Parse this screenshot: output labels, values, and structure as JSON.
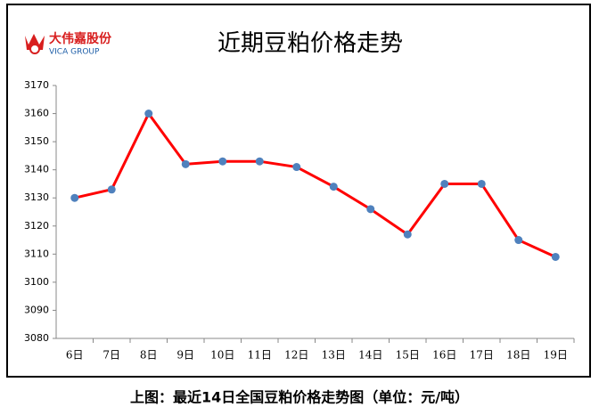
{
  "logo": {
    "name": "大伟嘉股份",
    "subtitle": "VICA GROUP"
  },
  "chart_data": {
    "type": "line",
    "title": "近期豆粕价格走势",
    "categories": [
      "6日",
      "7日",
      "8日",
      "9日",
      "10日",
      "11日",
      "12日",
      "13日",
      "14日",
      "15日",
      "16日",
      "17日",
      "18日",
      "19日"
    ],
    "series": [
      {
        "name": "豆粕价格",
        "color": "#ff0000",
        "marker_color": "#4f81bd",
        "values": [
          3130,
          3133,
          3160,
          3142,
          3143,
          3143,
          3141,
          3134,
          3126,
          3117,
          3135,
          3135,
          3115,
          3109
        ]
      }
    ],
    "ylim": [
      3080,
      3170
    ],
    "yticks": [
      3080,
      3090,
      3100,
      3110,
      3120,
      3130,
      3140,
      3150,
      3160,
      3170
    ],
    "grid": false
  },
  "caption": "上图：最近14日全国豆粕价格走势图（单位：元/吨）"
}
